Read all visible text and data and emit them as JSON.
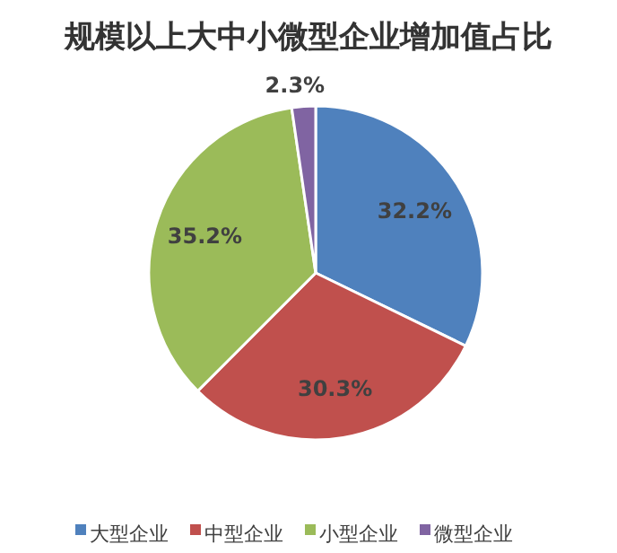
{
  "chart_data": {
    "type": "pie",
    "title": "规模以上大中小微型企业增加值占比",
    "categories": [
      "大型企业",
      "中型企业",
      "小型企业",
      "微型企业"
    ],
    "values": [
      32.2,
      30.3,
      35.2,
      2.3
    ],
    "value_labels": [
      "32.2%",
      "30.3%",
      "35.2%",
      "2.3%"
    ],
    "colors": [
      "#4f81bd",
      "#c0504d",
      "#9bbb59",
      "#8064a2"
    ],
    "legend": "bottom"
  }
}
